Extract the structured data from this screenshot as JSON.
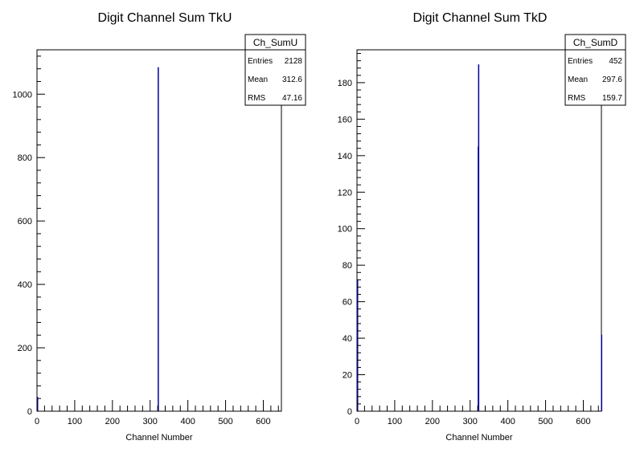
{
  "chart_data": [
    {
      "type": "bar",
      "title": "Digit Channel Sum TkU",
      "xlabel": "Channel Number",
      "ylabel": "",
      "xlim": [
        0,
        648
      ],
      "ylim": [
        0,
        1140
      ],
      "x_ticks": [
        0,
        100,
        200,
        300,
        400,
        500,
        600
      ],
      "y_ticks": [
        0,
        200,
        400,
        600,
        800,
        1000
      ],
      "grid": false,
      "bar_color": "#000099",
      "bins": [
        {
          "x": 0,
          "value": 45
        },
        {
          "x": 320,
          "value": 1085
        }
      ],
      "stats": {
        "name": "Ch_SumU",
        "rows": [
          {
            "label": "Entries",
            "value": "2128"
          },
          {
            "label": "Mean",
            "value": "312.6"
          },
          {
            "label": "RMS",
            "value": "47.16"
          }
        ]
      }
    },
    {
      "type": "bar",
      "title": "Digit Channel Sum TkD",
      "xlabel": "Channel Number",
      "ylabel": "",
      "xlim": [
        0,
        648
      ],
      "ylim": [
        0,
        198
      ],
      "x_ticks": [
        0,
        100,
        200,
        300,
        400,
        500,
        600
      ],
      "y_ticks": [
        0,
        20,
        40,
        60,
        80,
        100,
        120,
        140,
        160,
        180
      ],
      "grid": false,
      "bar_color": "#000099",
      "bins": [
        {
          "x": 0,
          "value": 72
        },
        {
          "x": 320,
          "value": 145
        },
        {
          "x": 321,
          "value": 190
        },
        {
          "x": 647,
          "value": 42
        }
      ],
      "stats": {
        "name": "Ch_SumD",
        "rows": [
          {
            "label": "Entries",
            "value": "452"
          },
          {
            "label": "Mean",
            "value": "297.6"
          },
          {
            "label": "RMS",
            "value": "159.7"
          }
        ]
      }
    }
  ]
}
